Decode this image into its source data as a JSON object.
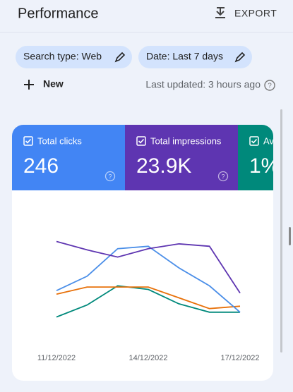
{
  "header": {
    "title": "Performance",
    "export": "EXPORT"
  },
  "filters": [
    "Search type: Web",
    "Date: Last 7 days"
  ],
  "new_button": "New",
  "last_updated": "Last updated: 3 hours ago",
  "metrics": [
    {
      "label": "Total clicks",
      "value": "246"
    },
    {
      "label": "Total impressions",
      "value": "23.9K"
    },
    {
      "label": "Av",
      "value": "1%"
    }
  ],
  "chart_data": {
    "type": "line",
    "categories": [
      "11/12/2022",
      null,
      null,
      "14/12/2022",
      null,
      null,
      "17/12/2022"
    ],
    "ylim": [
      0,
      100
    ],
    "series": [
      {
        "color": "#00897b",
        "values": [
          12,
          22,
          38,
          35,
          23,
          16,
          16
        ]
      },
      {
        "color": "#e8710a",
        "values": [
          31,
          37,
          37,
          37,
          28,
          19,
          21
        ]
      },
      {
        "color": "#4a8ee8",
        "values": [
          34,
          46,
          69,
          71,
          53,
          38,
          16
        ]
      },
      {
        "color": "#5e35b1",
        "values": [
          75,
          68,
          62,
          69,
          73,
          71,
          32
        ]
      }
    ]
  }
}
